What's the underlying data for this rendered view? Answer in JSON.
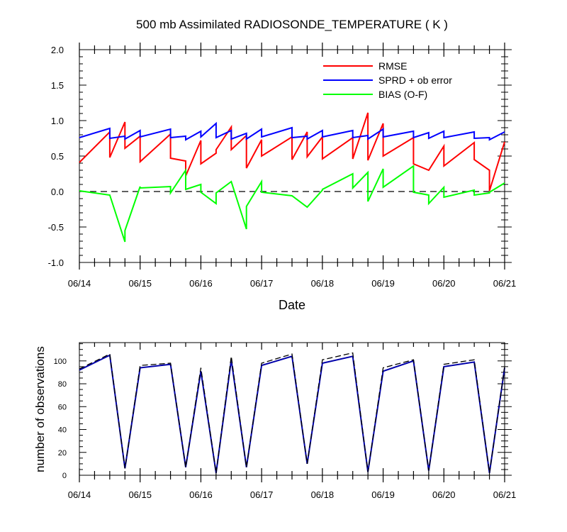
{
  "title": "500 mb Assimilated RADIOSONDE_TEMPERATURE ( K )",
  "colors": {
    "rmse": "#ff0000",
    "sprd": "#0000ff",
    "bias": "#00ff00",
    "obs_used": "#0000aa",
    "obs_total": "#000000"
  },
  "chart_data": [
    {
      "type": "line",
      "title": "500 mb Assimilated RADIOSONDE_TEMPERATURE ( K )",
      "xlabel": "Date",
      "ylabel": "",
      "x_range": [
        "06/14",
        "06/21"
      ],
      "ylim": [
        -1.0,
        2.0
      ],
      "xticks": [
        "06/14",
        "06/15",
        "06/16",
        "06/17",
        "06/18",
        "06/19",
        "06/20",
        "06/21"
      ],
      "yticks": [
        "-1.0",
        "-0.5",
        "0.0",
        "0.5",
        "1.0",
        "1.5",
        "2.0"
      ],
      "zero_line": "dashed",
      "grid": false,
      "legend_position": "top-right",
      "series": [
        {
          "name": "RMSE",
          "color": "#ff0000",
          "x": [
            14.0,
            14.5,
            14.5,
            14.75,
            14.75,
            15.0,
            15.0,
            15.5,
            15.5,
            15.75,
            15.75,
            16.0,
            16.0,
            16.25,
            16.25,
            16.5,
            16.5,
            16.75,
            16.75,
            17.0,
            17.0,
            17.5,
            17.5,
            17.75,
            17.75,
            18.0,
            18.0,
            18.5,
            18.5,
            18.75,
            18.75,
            19.0,
            19.0,
            19.5,
            19.5,
            19.75,
            19.75,
            20.0,
            20.0,
            20.5,
            20.5,
            20.75,
            20.75,
            21.0
          ],
          "y": [
            0.41,
            0.84,
            0.48,
            0.98,
            0.61,
            0.78,
            0.42,
            0.81,
            0.47,
            0.43,
            0.22,
            0.72,
            0.39,
            0.54,
            0.59,
            0.91,
            0.59,
            0.79,
            0.33,
            0.73,
            0.5,
            0.77,
            0.45,
            0.84,
            0.49,
            0.77,
            0.46,
            0.76,
            0.46,
            1.11,
            0.44,
            0.96,
            0.5,
            0.76,
            0.39,
            0.3,
            0.3,
            0.64,
            0.36,
            0.69,
            0.45,
            0.3,
            0.01,
            0.7
          ]
        },
        {
          "name": "SPRD + ob error",
          "color": "#0000ff",
          "x": [
            14.0,
            14.5,
            14.5,
            14.75,
            14.75,
            15.0,
            15.0,
            15.5,
            15.5,
            15.75,
            15.75,
            16.0,
            16.0,
            16.25,
            16.25,
            16.5,
            16.5,
            16.75,
            16.75,
            17.0,
            17.0,
            17.5,
            17.5,
            17.75,
            17.75,
            18.0,
            18.0,
            18.5,
            18.5,
            18.75,
            18.75,
            19.0,
            19.0,
            19.5,
            19.5,
            19.75,
            19.75,
            20.0,
            20.0,
            20.5,
            20.5,
            20.75,
            20.75,
            21.0
          ],
          "y": [
            0.76,
            0.89,
            0.75,
            0.78,
            0.74,
            0.86,
            0.77,
            0.88,
            0.76,
            0.78,
            0.73,
            0.85,
            0.77,
            0.96,
            0.76,
            0.86,
            0.74,
            0.82,
            0.74,
            0.88,
            0.77,
            0.9,
            0.76,
            0.78,
            0.74,
            0.86,
            0.77,
            0.86,
            0.76,
            0.79,
            0.74,
            0.88,
            0.77,
            0.85,
            0.76,
            0.83,
            0.75,
            0.85,
            0.76,
            0.84,
            0.75,
            0.76,
            0.73,
            0.84
          ]
        },
        {
          "name": "BIAS (O-F)",
          "color": "#00ff00",
          "x": [
            14.0,
            14.5,
            14.75,
            14.75,
            15.0,
            15.0,
            15.5,
            15.5,
            15.75,
            15.75,
            16.0,
            16.0,
            16.25,
            16.25,
            16.5,
            16.75,
            16.75,
            17.0,
            17.0,
            17.5,
            17.75,
            18.0,
            18.0,
            18.5,
            18.5,
            18.75,
            18.75,
            19.0,
            19.0,
            19.5,
            19.5,
            19.75,
            19.75,
            20.0,
            20.0,
            20.5,
            20.5,
            20.75,
            20.75,
            21.0
          ],
          "y": [
            0.01,
            -0.05,
            -0.71,
            -0.55,
            0.07,
            0.05,
            0.07,
            -0.02,
            0.3,
            0.03,
            0.1,
            -0.01,
            -0.17,
            -0.02,
            0.14,
            -0.53,
            -0.21,
            0.14,
            -0.01,
            -0.06,
            -0.22,
            0.02,
            0.03,
            0.25,
            0.05,
            0.27,
            -0.14,
            0.32,
            0.06,
            0.36,
            -0.01,
            -0.05,
            -0.17,
            0.06,
            -0.08,
            0.02,
            -0.05,
            -0.02,
            -0.01,
            0.12
          ]
        }
      ]
    },
    {
      "type": "line",
      "title": "",
      "xlabel": "",
      "ylabel": "number of observations",
      "x_range": [
        "06/14",
        "06/21"
      ],
      "ylim": [
        0,
        116
      ],
      "xticks": [
        "06/14",
        "06/15",
        "06/16",
        "06/17",
        "06/18",
        "06/19",
        "06/20",
        "06/21"
      ],
      "yticks": [
        "0",
        "20",
        "40",
        "60",
        "80",
        "100"
      ],
      "grid": false,
      "series": [
        {
          "line_style": "solid",
          "color": "#0000aa",
          "x": [
            14.0,
            14.5,
            14.75,
            15.0,
            15.5,
            15.75,
            16.0,
            16.25,
            16.5,
            16.75,
            17.0,
            17.5,
            17.75,
            18.0,
            18.5,
            18.75,
            19.0,
            19.5,
            19.75,
            20.0,
            20.5,
            20.75,
            21.0
          ],
          "y": [
            92,
            105,
            6,
            94,
            97,
            7,
            91,
            2,
            101,
            7,
            96,
            104,
            10,
            98,
            104,
            3,
            91,
            100,
            4,
            95,
            99,
            2,
            94
          ]
        },
        {
          "line_style": "dashed",
          "color": "#000000",
          "x": [
            14.0,
            14.5,
            14.75,
            15.0,
            15.5,
            15.75,
            16.0,
            16.25,
            16.5,
            16.75,
            17.0,
            17.5,
            17.75,
            18.0,
            18.5,
            18.75,
            19.0,
            19.5,
            19.75,
            20.0,
            20.5,
            20.75,
            21.0
          ],
          "y": [
            93,
            106,
            6,
            96,
            98,
            7,
            94,
            2,
            104,
            7,
            98,
            106,
            10,
            101,
            107,
            3,
            94,
            101,
            4,
            97,
            101,
            2,
            95
          ]
        }
      ]
    }
  ]
}
